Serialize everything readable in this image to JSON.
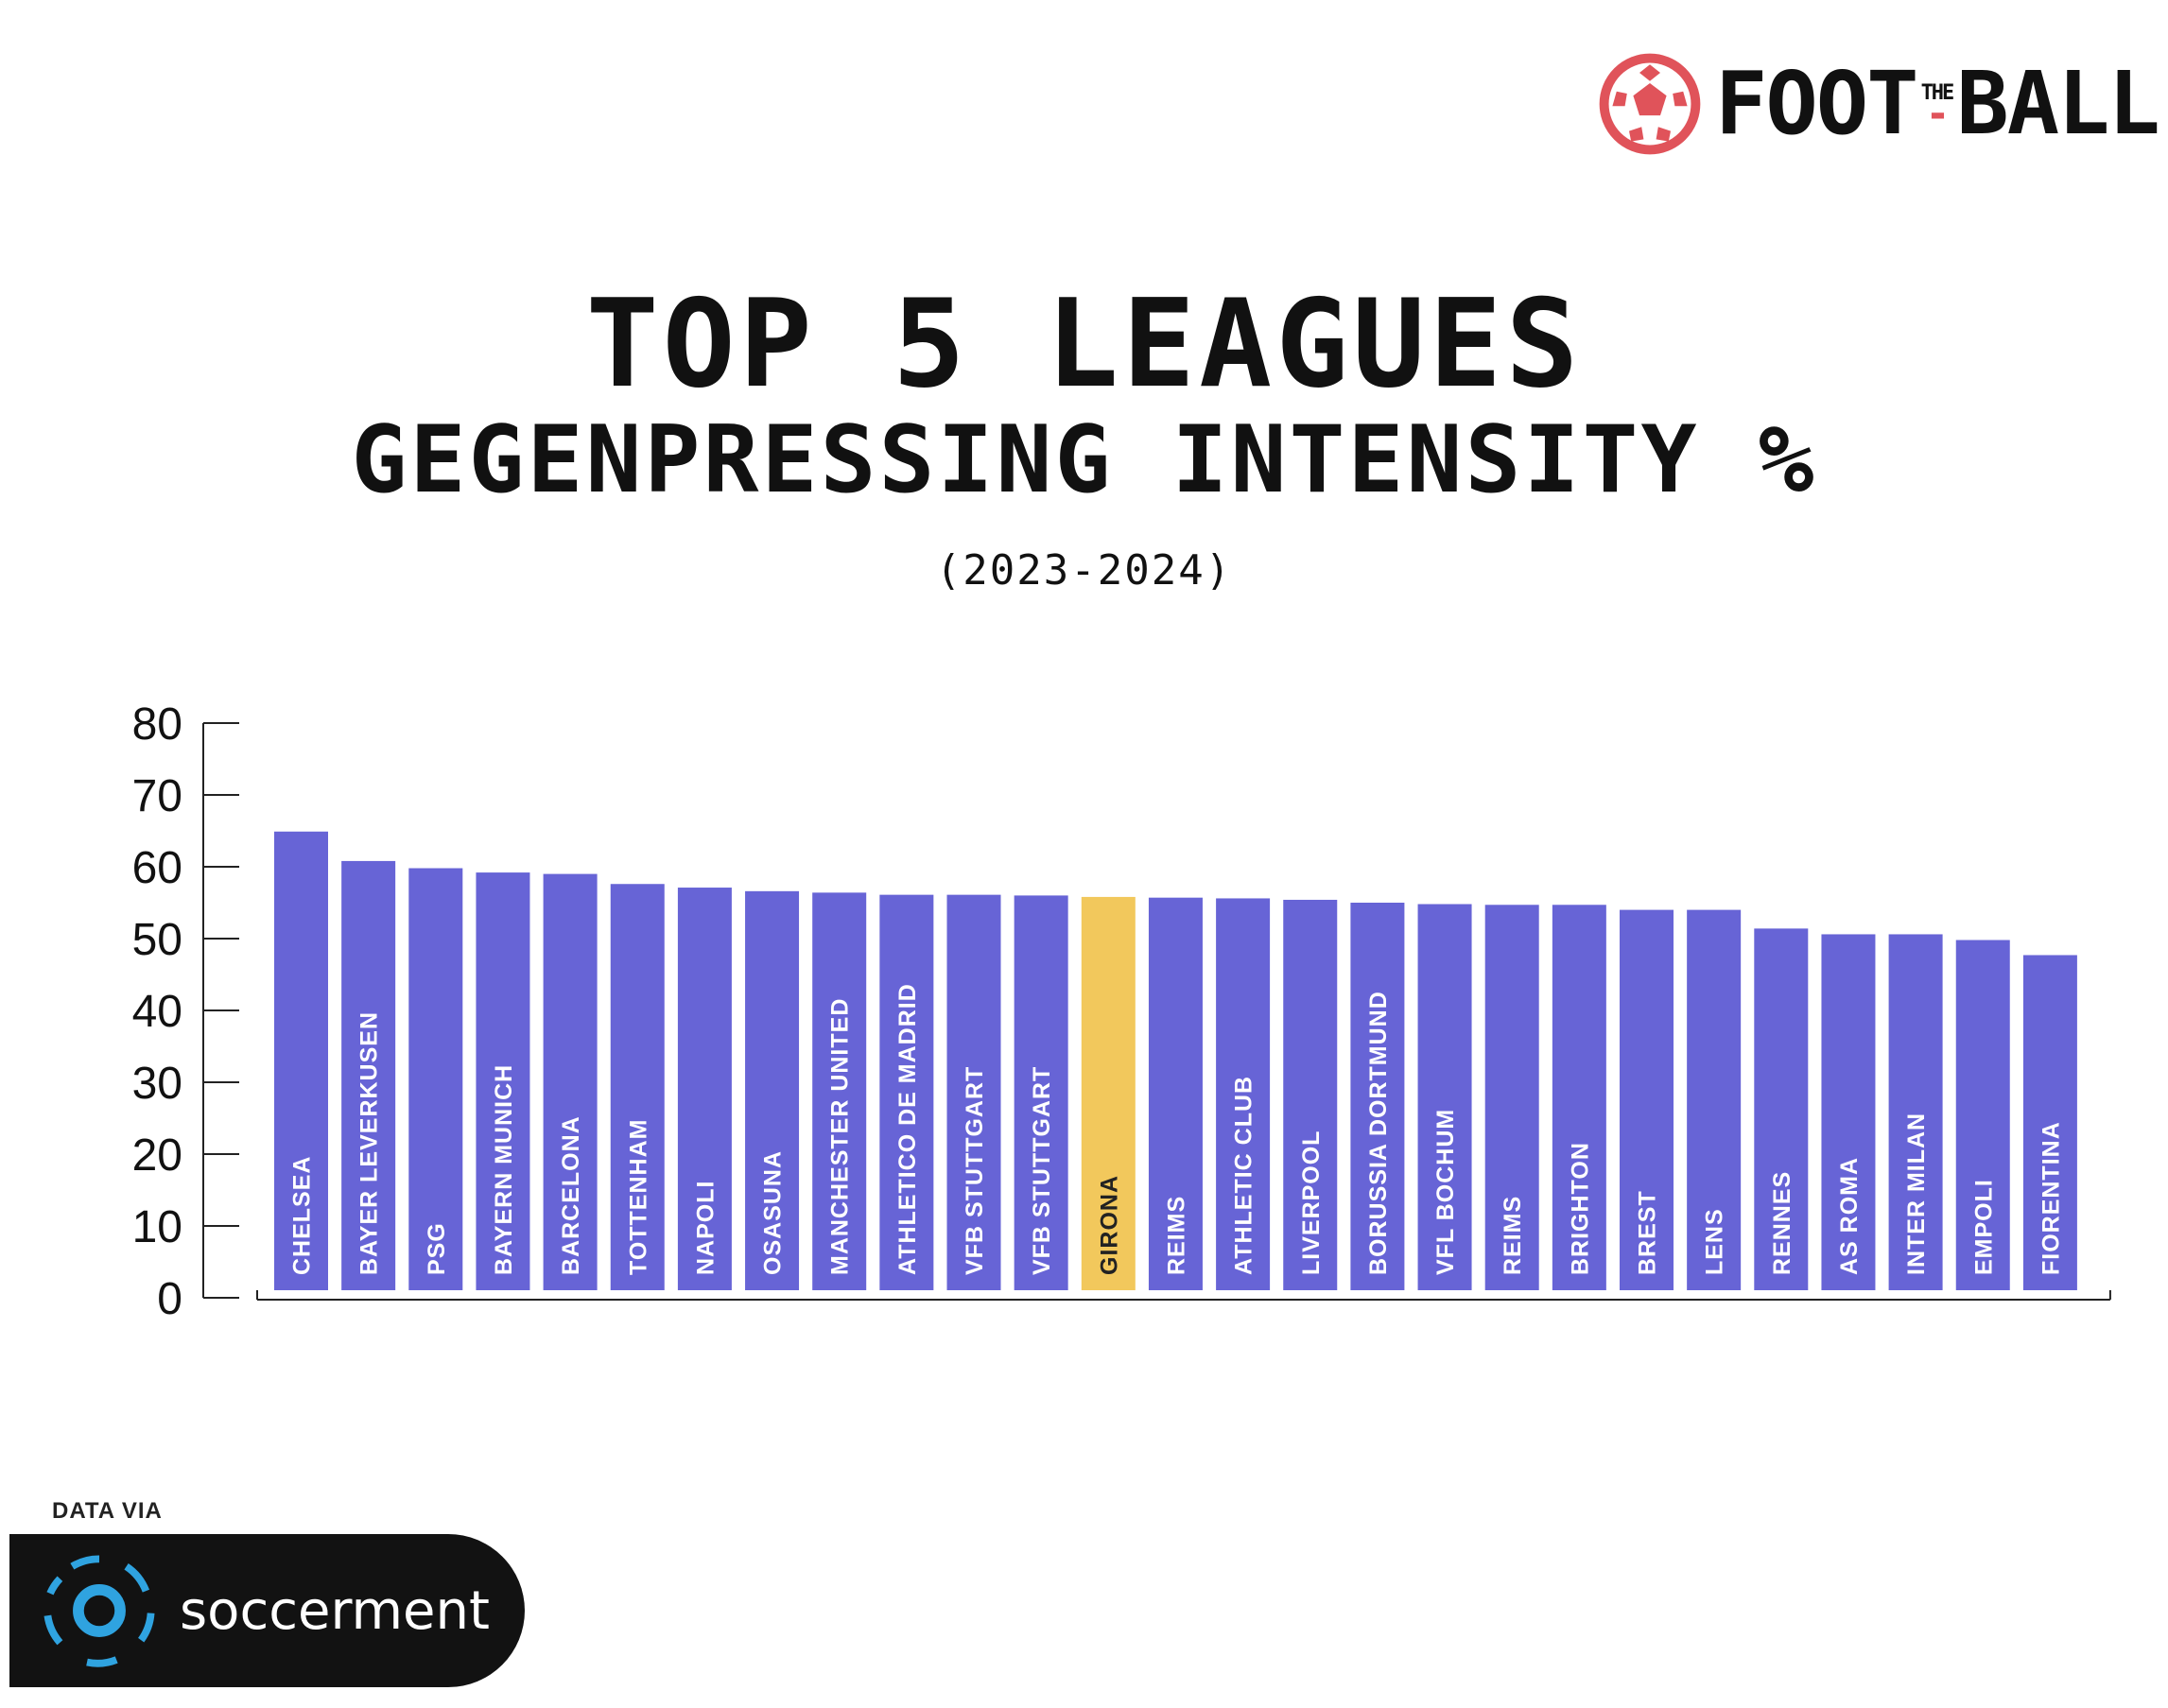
{
  "brand": {
    "logo_left": "FOOT",
    "logo_the": "THE",
    "logo_right": "BALL",
    "ball_icon": "football-icon"
  },
  "title": {
    "line1": "TOP 5 LEAGUES",
    "line2": "GEGENPRESSING INTENSITY %",
    "line3": "(2023-2024)"
  },
  "colors": {
    "bar": "#6764d6",
    "highlight": "#f2c85c",
    "bar_label": "#ffffff",
    "highlight_label": "#222222",
    "axis": "#222222"
  },
  "chart_data": {
    "type": "bar",
    "title": "",
    "xlabel": "",
    "ylabel": "",
    "ylim": [
      0,
      80
    ],
    "yticks": [
      0,
      10,
      20,
      30,
      40,
      50,
      60,
      70,
      80
    ],
    "grid": false,
    "legend": "none",
    "highlight": "GIRONA",
    "categories": [
      "CHELSEA",
      "BAYER LEVERKUSEN",
      "PSG",
      "BAYERN MUNICH",
      "BARCELONA",
      "TOTTENHAM",
      "NAPOLI",
      "OSASUNA",
      "MANCHESTER UNITED",
      "ATHLETICO DE MADRID",
      "VFB STUTTGART",
      "VFB STUTTGART",
      "GIRONA",
      "REIMS",
      "ATHLETIC CLUB",
      "LIVERPOOL",
      "BORUSSIA DORTMUND",
      "VFL BOCHUM",
      "REIMS",
      "BRIGHTON",
      "BREST",
      "LENS",
      "RENNES",
      "AS ROMA",
      "INTER MILAN",
      "EMPOLI",
      "FIORENTINA"
    ],
    "values": [
      64.9,
      60.8,
      59.8,
      59.2,
      59.0,
      57.6,
      57.1,
      56.6,
      56.4,
      56.1,
      56.1,
      56.0,
      55.8,
      55.7,
      55.6,
      55.4,
      55.0,
      54.8,
      54.7,
      54.7,
      54.0,
      54.0,
      51.4,
      50.6,
      50.6,
      49.8,
      47.7
    ]
  },
  "source": {
    "label": "DATA VIA",
    "name": "soccerment",
    "icon": "soccerment-logo-icon"
  }
}
